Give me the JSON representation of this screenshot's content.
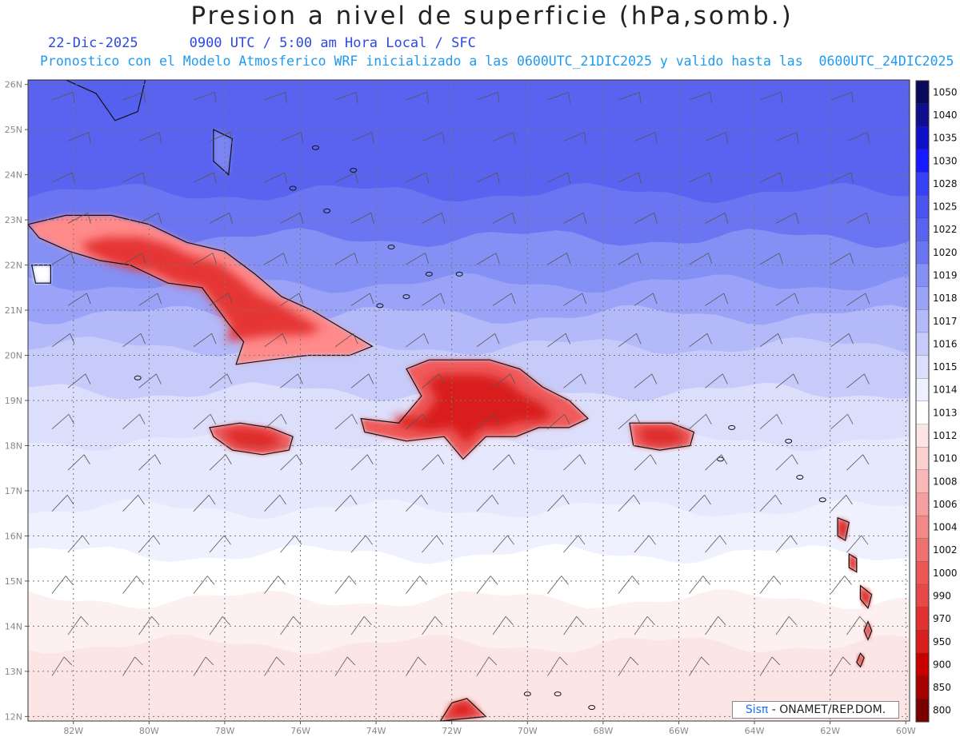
{
  "header": {
    "title": "Presion a nivel de superficie (hPa,somb.)",
    "date": "22-Dic-2025",
    "time_line": "0900 UTC / 5:00 am Hora Local / SFC",
    "model_line": "Pronostico con el Modelo Atmosferico WRF inicializado a las 0600UTC_21DIC2025 y valido hasta las  0600UTC_24DIC2025"
  },
  "map": {
    "lat_labels": [
      "26N",
      "25N",
      "24N",
      "23N",
      "22N",
      "21N",
      "20N",
      "19N",
      "18N",
      "17N",
      "16N",
      "15N",
      "14N",
      "13N",
      "12N"
    ],
    "lon_labels": [
      "82W",
      "80W",
      "78W",
      "76W",
      "74W",
      "72W",
      "70W",
      "68W",
      "66W",
      "64W",
      "62W",
      "60W"
    ],
    "region_bounds": {
      "lon_min": -83.2,
      "lon_max": -59.9,
      "lat_min": 11.9,
      "lat_max": 26.1
    },
    "bands": [
      {
        "lat": 26.1,
        "color": "#5a63ef"
      },
      {
        "lat": 23.6,
        "color": "#6b75f2"
      },
      {
        "lat": 22.6,
        "color": "#8590f5"
      },
      {
        "lat": 21.6,
        "color": "#9aa3f7"
      },
      {
        "lat": 20.9,
        "color": "#b3b9f9"
      },
      {
        "lat": 20.2,
        "color": "#c6cbfa"
      },
      {
        "lat": 19.2,
        "color": "#dcdffc"
      },
      {
        "lat": 18.1,
        "color": "#e6e8fd"
      },
      {
        "lat": 16.6,
        "color": "#f0f1fe"
      },
      {
        "lat": 15.6,
        "color": "#ffffff"
      },
      {
        "lat": 14.6,
        "color": "#fdf0f0"
      },
      {
        "lat": 13.6,
        "color": "#fbe5e5"
      }
    ],
    "islands": [
      {
        "name": "Cuba",
        "points": [
          [
            -83.2,
            22.9
          ],
          [
            -82.2,
            23.1
          ],
          [
            -81.0,
            23.1
          ],
          [
            -80.0,
            22.9
          ],
          [
            -79.0,
            22.5
          ],
          [
            -78.0,
            22.3
          ],
          [
            -77.2,
            21.8
          ],
          [
            -76.5,
            21.3
          ],
          [
            -75.7,
            21.0
          ],
          [
            -74.9,
            20.6
          ],
          [
            -74.1,
            20.2
          ],
          [
            -74.7,
            20.0
          ],
          [
            -75.8,
            20.0
          ],
          [
            -76.8,
            19.9
          ],
          [
            -77.7,
            19.8
          ],
          [
            -77.5,
            20.3
          ],
          [
            -77.9,
            20.7
          ],
          [
            -78.6,
            21.5
          ],
          [
            -79.5,
            21.6
          ],
          [
            -80.5,
            22.0
          ],
          [
            -81.3,
            22.1
          ],
          [
            -82.1,
            22.3
          ],
          [
            -82.9,
            22.6
          ]
        ],
        "fill": "#ff8a8a",
        "core": "#e53535"
      },
      {
        "name": "Hispaniola",
        "points": [
          [
            -74.4,
            18.6
          ],
          [
            -73.4,
            18.5
          ],
          [
            -72.8,
            19.1
          ],
          [
            -73.2,
            19.7
          ],
          [
            -72.6,
            19.9
          ],
          [
            -71.7,
            19.9
          ],
          [
            -71.0,
            19.9
          ],
          [
            -70.2,
            19.7
          ],
          [
            -69.6,
            19.3
          ],
          [
            -68.9,
            19.0
          ],
          [
            -68.4,
            18.6
          ],
          [
            -68.9,
            18.4
          ],
          [
            -69.7,
            18.4
          ],
          [
            -70.3,
            18.2
          ],
          [
            -71.1,
            18.2
          ],
          [
            -71.7,
            17.7
          ],
          [
            -72.2,
            18.2
          ],
          [
            -73.2,
            18.1
          ],
          [
            -74.3,
            18.3
          ]
        ],
        "fill": "#f05a5a",
        "core": "#d91e1e"
      },
      {
        "name": "Jamaica",
        "points": [
          [
            -78.4,
            18.4
          ],
          [
            -77.6,
            18.5
          ],
          [
            -76.8,
            18.4
          ],
          [
            -76.2,
            18.2
          ],
          [
            -76.3,
            17.9
          ],
          [
            -77.0,
            17.8
          ],
          [
            -77.8,
            17.9
          ],
          [
            -78.3,
            18.2
          ]
        ],
        "fill": "#ef6060",
        "core": "#de2a2a"
      },
      {
        "name": "Puerto Rico",
        "points": [
          [
            -67.3,
            18.5
          ],
          [
            -66.2,
            18.5
          ],
          [
            -65.6,
            18.3
          ],
          [
            -65.7,
            18.0
          ],
          [
            -66.5,
            17.9
          ],
          [
            -67.2,
            18.0
          ]
        ],
        "fill": "#ef6060",
        "core": "#de2a2a"
      },
      {
        "name": "Isla de la Juventud",
        "points": [
          [
            -83.1,
            22.0
          ],
          [
            -82.6,
            22.0
          ],
          [
            -82.6,
            21.6
          ],
          [
            -83.0,
            21.6
          ]
        ],
        "fill": "#ffffff",
        "core": "#ffffff"
      },
      {
        "name": "Andros",
        "points": [
          [
            -78.3,
            25.0
          ],
          [
            -77.8,
            24.8
          ],
          [
            -77.9,
            24.0
          ],
          [
            -78.3,
            24.3
          ]
        ],
        "fill": "#7a84f3",
        "core": "#7a84f3"
      },
      {
        "name": "Florida",
        "points": [
          [
            -83.2,
            26.1
          ],
          [
            -80.1,
            26.1
          ],
          [
            -80.3,
            25.4
          ],
          [
            -80.9,
            25.2
          ],
          [
            -81.4,
            25.8
          ],
          [
            -82.2,
            26.1
          ]
        ],
        "fill": "#5560ee",
        "core": "#5560ee"
      },
      {
        "name": "Guadeloupe",
        "points": [
          [
            -61.8,
            16.4
          ],
          [
            -61.5,
            16.3
          ],
          [
            -61.6,
            15.9
          ],
          [
            -61.8,
            16.0
          ]
        ],
        "fill": "#e84848",
        "core": "#cc1f1f"
      },
      {
        "name": "Dominica",
        "points": [
          [
            -61.5,
            15.6
          ],
          [
            -61.3,
            15.5
          ],
          [
            -61.3,
            15.2
          ],
          [
            -61.5,
            15.3
          ]
        ],
        "fill": "#e84848",
        "core": "#cc1f1f"
      },
      {
        "name": "Martinique",
        "points": [
          [
            -61.2,
            14.9
          ],
          [
            -60.9,
            14.7
          ],
          [
            -61.0,
            14.4
          ],
          [
            -61.2,
            14.6
          ]
        ],
        "fill": "#e84848",
        "core": "#cc1f1f"
      },
      {
        "name": "St Lucia",
        "points": [
          [
            -61.0,
            14.1
          ],
          [
            -60.9,
            13.9
          ],
          [
            -61.0,
            13.7
          ],
          [
            -61.1,
            13.9
          ]
        ],
        "fill": "#e84848",
        "core": "#cc1f1f"
      },
      {
        "name": "St Vincent",
        "points": [
          [
            -61.2,
            13.4
          ],
          [
            -61.1,
            13.3
          ],
          [
            -61.2,
            13.1
          ],
          [
            -61.3,
            13.2
          ]
        ],
        "fill": "#e84848",
        "core": "#cc1f1f"
      },
      {
        "name": "South America coast",
        "points": [
          [
            -72.3,
            11.9
          ],
          [
            -72.0,
            12.3
          ],
          [
            -71.6,
            12.4
          ],
          [
            -71.1,
            12.0
          ]
        ],
        "fill": "#f05a5a",
        "core": "#d91e1e"
      }
    ],
    "small_islands": [
      [
        -73.9,
        21.1
      ],
      [
        -73.2,
        21.3
      ],
      [
        -72.6,
        21.8
      ],
      [
        -71.8,
        21.8
      ],
      [
        -75.3,
        23.2
      ],
      [
        -76.2,
        23.7
      ],
      [
        -74.6,
        24.1
      ],
      [
        -75.6,
        24.6
      ],
      [
        -73.6,
        22.4
      ],
      [
        -64.6,
        18.4
      ],
      [
        -64.9,
        17.7
      ],
      [
        -63.1,
        18.1
      ],
      [
        -62.8,
        17.3
      ],
      [
        -62.2,
        16.8
      ],
      [
        -69.2,
        12.5
      ],
      [
        -68.3,
        12.2
      ],
      [
        -70.0,
        12.5
      ],
      [
        -80.3,
        19.5
      ]
    ],
    "barbs_rows": 15,
    "barbs_cols": 12
  },
  "colorbar": {
    "levels": [
      "1050",
      "1040",
      "1035",
      "1030",
      "1028",
      "1025",
      "1022",
      "1020",
      "1019",
      "1018",
      "1017",
      "1016",
      "1015",
      "1014",
      "1013",
      "1012",
      "1010",
      "1008",
      "1006",
      "1004",
      "1002",
      "1000",
      "990",
      "970",
      "950",
      "900",
      "850",
      "800"
    ],
    "colors": [
      "#0a0a5c",
      "#0e0e8f",
      "#1010c8",
      "#1919ff",
      "#3840f5",
      "#4a52f0",
      "#5a63ef",
      "#6b75f2",
      "#8590f5",
      "#9aa3f7",
      "#b3b9f9",
      "#c6cbfa",
      "#dcdffc",
      "#eef0fe",
      "#ffffff",
      "#fde5e5",
      "#fbd0d0",
      "#f8b8b8",
      "#f5a0a0",
      "#f28888",
      "#ef7070",
      "#ec5858",
      "#e84848",
      "#e33030",
      "#d91e1e",
      "#c80000",
      "#a60000",
      "#7a0000"
    ]
  },
  "credit": {
    "sis": "Sisπ",
    "rest": " - ONAMET/REP.DOM."
  }
}
